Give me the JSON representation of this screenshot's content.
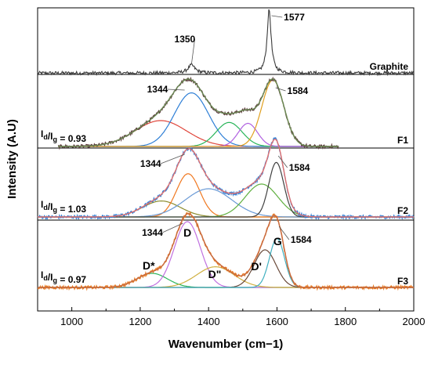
{
  "chart_data": {
    "type": "line",
    "title": "",
    "xlabel": "Wavenumber (cm−1)",
    "ylabel": "Intensity (A.U)",
    "xlim": [
      900,
      2000
    ],
    "xticks": [
      1000,
      1200,
      1400,
      1600,
      1800,
      2000
    ],
    "grid": false,
    "legend": "none",
    "panels": [
      {
        "id": "graphite",
        "name": "Graphite",
        "color": "#3a3a3a",
        "peaks": [
          {
            "center": 1350,
            "height": 0.12,
            "width": 12
          },
          {
            "center": 1577,
            "height": 0.95,
            "width": 7
          }
        ],
        "annotations": [
          {
            "text": "1350",
            "x": 1350
          },
          {
            "text": "1577",
            "x": 1577
          }
        ]
      },
      {
        "id": "F1",
        "name": "F1",
        "ratio_prefix": "I",
        "ratio_sub1": "d",
        "ratio_mid": "/I",
        "ratio_sub2": "g",
        "ratio_value": " = 0.93",
        "color": "#5b3a3a",
        "fit_color": "#6a8a55",
        "components": [
          {
            "center": 1260,
            "height": 0.28,
            "width": 75,
            "color": "#e0453a"
          },
          {
            "center": 1350,
            "height": 0.58,
            "width": 50,
            "color": "#2e7fd6"
          },
          {
            "center": 1460,
            "height": 0.26,
            "width": 38,
            "color": "#2ab55a"
          },
          {
            "center": 1515,
            "height": 0.25,
            "width": 28,
            "color": "#b060e0"
          },
          {
            "center": 1588,
            "height": 0.72,
            "width": 32,
            "color": "#e0a020"
          }
        ],
        "annotations": [
          {
            "text": "1344",
            "x": 1344
          },
          {
            "text": "1584",
            "x": 1584
          }
        ]
      },
      {
        "id": "F2",
        "name": "F2",
        "ratio_prefix": "I",
        "ratio_sub1": "d",
        "ratio_mid": "/I",
        "ratio_sub2": "g",
        "ratio_value": " = 1.03",
        "color": "#2e7fd6",
        "fit_color": "#e07070",
        "components": [
          {
            "center": 1262,
            "height": 0.17,
            "width": 55,
            "color": "#8a8a2a"
          },
          {
            "center": 1340,
            "height": 0.46,
            "width": 34,
            "color": "#f07820"
          },
          {
            "center": 1400,
            "height": 0.3,
            "width": 68,
            "color": "#6a9ad6"
          },
          {
            "center": 1555,
            "height": 0.35,
            "width": 48,
            "color": "#60b040"
          },
          {
            "center": 1598,
            "height": 0.58,
            "width": 22,
            "color": "#404040"
          }
        ],
        "annotations": [
          {
            "text": "1344",
            "x": 1344
          },
          {
            "text": "1584",
            "x": 1584
          }
        ]
      },
      {
        "id": "F3",
        "name": "F3",
        "ratio_prefix": "I",
        "ratio_sub1": "d",
        "ratio_mid": "/I",
        "ratio_sub2": "g",
        "ratio_value": " = 0.97",
        "color": "#e87a20",
        "fit_color": "#c86a40",
        "components": [
          {
            "center": 1235,
            "height": 0.15,
            "width": 45,
            "color": "#2ab55a"
          },
          {
            "center": 1338,
            "height": 0.7,
            "width": 38,
            "color": "#c070e0"
          },
          {
            "center": 1420,
            "height": 0.22,
            "width": 55,
            "color": "#d0b040"
          },
          {
            "center": 1565,
            "height": 0.4,
            "width": 32,
            "color": "#6a4a3a"
          },
          {
            "center": 1600,
            "height": 0.52,
            "width": 22,
            "color": "#40b0c0"
          }
        ],
        "annotations": [
          {
            "text": "1344",
            "x": 1344
          },
          {
            "text": "1584",
            "x": 1584
          }
        ],
        "band_labels": [
          {
            "text": "D*",
            "x": 1235
          },
          {
            "text": "D",
            "x": 1338
          },
          {
            "text": "D\"",
            "x": 1420
          },
          {
            "text": "D'",
            "x": 1560
          },
          {
            "text": "G",
            "x": 1600
          }
        ]
      }
    ]
  }
}
